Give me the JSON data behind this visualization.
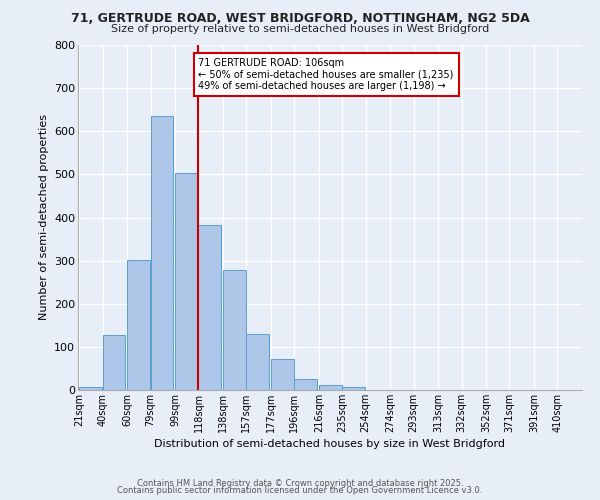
{
  "title_line1": "71, GERTRUDE ROAD, WEST BRIDGFORD, NOTTINGHAM, NG2 5DA",
  "title_line2": "Size of property relative to semi-detached houses in West Bridgford",
  "xlabel": "Distribution of semi-detached houses by size in West Bridgford",
  "ylabel": "Number of semi-detached properties",
  "footer_line1": "Contains HM Land Registry data © Crown copyright and database right 2025.",
  "footer_line2": "Contains public sector information licensed under the Open Government Licence v3.0.",
  "bar_labels": [
    "21sqm",
    "40sqm",
    "60sqm",
    "79sqm",
    "99sqm",
    "118sqm",
    "138sqm",
    "157sqm",
    "177sqm",
    "196sqm",
    "216sqm",
    "235sqm",
    "254sqm",
    "274sqm",
    "293sqm",
    "313sqm",
    "332sqm",
    "352sqm",
    "371sqm",
    "391sqm",
    "410sqm"
  ],
  "bar_values": [
    8,
    127,
    302,
    635,
    503,
    383,
    279,
    130,
    71,
    26,
    12,
    7,
    0,
    0,
    0,
    0,
    0,
    0,
    0,
    0,
    0
  ],
  "property_label": "71 GERTRUDE ROAD: 106sqm",
  "smaller_pct": 50,
  "smaller_count": 1235,
  "larger_pct": 49,
  "larger_count": 1198,
  "bar_color": "#aec6e8",
  "bar_edge_color": "#5a9fd4",
  "vline_color": "#cc0000",
  "annotation_box_color": "#cc0000",
  "background_color": "#e8eef8",
  "grid_color": "#ffffff",
  "ylim": [
    0,
    800
  ],
  "bin_width": 19,
  "vline_x": 118
}
